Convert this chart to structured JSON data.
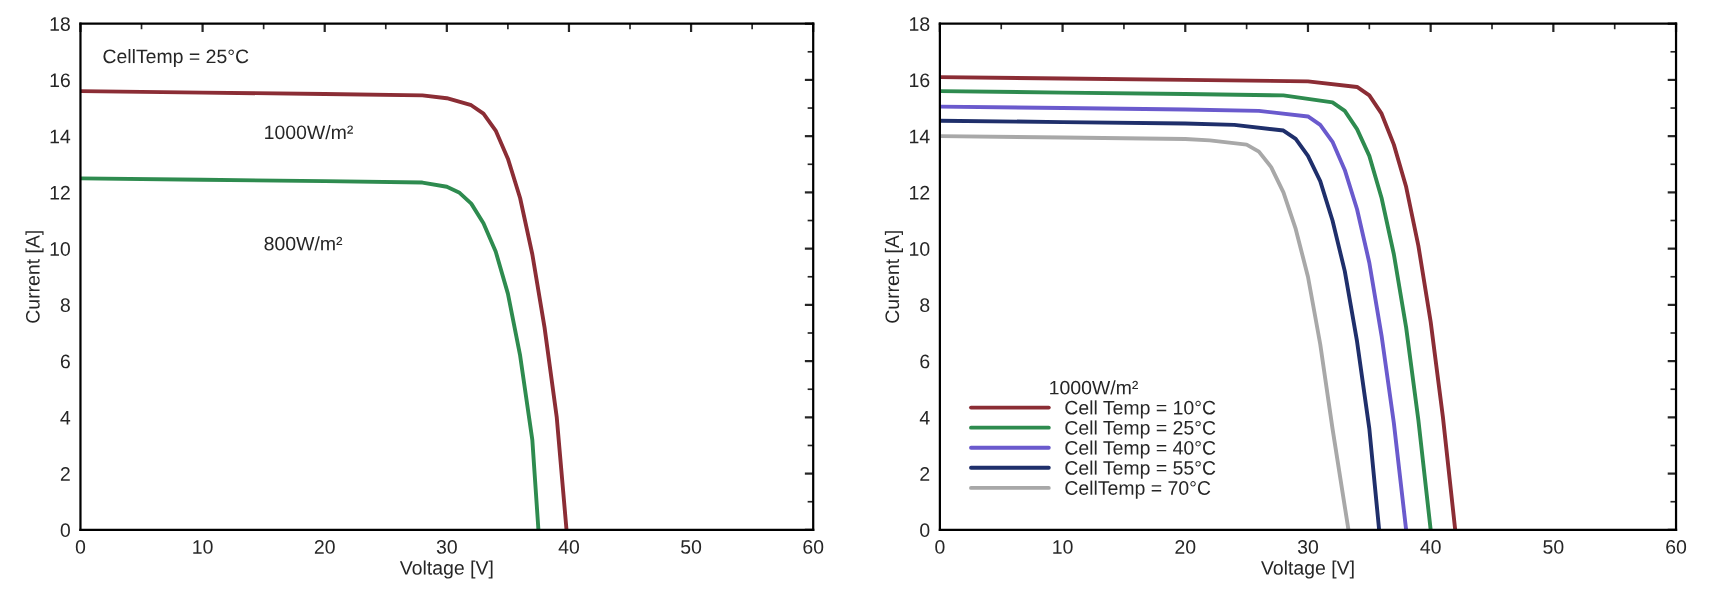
{
  "chart_data": [
    {
      "type": "line",
      "xlabel": "Voltage [V]",
      "ylabel": "Current [A]",
      "xlim": [
        0,
        60
      ],
      "xticks": [
        0,
        10,
        20,
        30,
        40,
        50,
        60
      ],
      "ylim": [
        0,
        18
      ],
      "yticks": [
        0,
        2,
        4,
        6,
        8,
        10,
        12,
        14,
        16,
        18
      ],
      "grid": false,
      "legend": false,
      "marker": "none",
      "line_style": "solid",
      "annotations": [
        "CellTemp = 25°C",
        "1000W/m²",
        "800W/m²"
      ],
      "series": [
        {
          "color": "#8b2d35",
          "x": [
            0,
            10,
            20,
            28,
            30,
            32,
            33,
            34,
            35,
            36,
            37,
            38,
            39,
            39.8
          ],
          "values": [
            15.6,
            15.55,
            15.5,
            15.45,
            15.35,
            15.1,
            14.8,
            14.2,
            13.2,
            11.8,
            9.8,
            7.2,
            4.0,
            0
          ]
        },
        {
          "color": "#2e8b4f",
          "x": [
            0,
            10,
            20,
            28,
            30,
            31,
            32,
            33,
            34,
            35,
            36,
            37,
            37.5
          ],
          "values": [
            12.5,
            12.45,
            12.4,
            12.35,
            12.2,
            12.0,
            11.6,
            10.9,
            9.9,
            8.4,
            6.2,
            3.2,
            0
          ]
        }
      ]
    },
    {
      "type": "line",
      "xlabel": "Voltage [V]",
      "ylabel": "Current [A]",
      "xlim": [
        0,
        60
      ],
      "xticks": [
        0,
        10,
        20,
        30,
        40,
        50,
        60
      ],
      "ylim": [
        0,
        18
      ],
      "yticks": [
        0,
        2,
        4,
        6,
        8,
        10,
        12,
        14,
        16,
        18
      ],
      "grid": false,
      "legend": "bottom left",
      "legend_title": "1000W/m²",
      "marker": "none",
      "line_style": "solid",
      "series": [
        {
          "name": "Cell Temp = 10°C",
          "color": "#8b2d35",
          "x": [
            0,
            10,
            20,
            30,
            34,
            35,
            36,
            37,
            38,
            39,
            40,
            41,
            42
          ],
          "values": [
            16.1,
            16.05,
            16.0,
            15.95,
            15.75,
            15.45,
            14.8,
            13.7,
            12.2,
            10.1,
            7.4,
            4.0,
            0
          ]
        },
        {
          "name": "Cell Temp = 25°C",
          "color": "#2e8b4f",
          "x": [
            0,
            10,
            20,
            28,
            32,
            33,
            34,
            35,
            36,
            37,
            38,
            39,
            40
          ],
          "values": [
            15.6,
            15.55,
            15.5,
            15.45,
            15.2,
            14.9,
            14.25,
            13.3,
            11.8,
            9.8,
            7.2,
            3.9,
            0
          ]
        },
        {
          "name": "Cell Temp = 40°C",
          "color": "#6a5acd",
          "x": [
            0,
            10,
            20,
            26,
            30,
            31,
            32,
            33,
            34,
            35,
            36,
            37,
            38
          ],
          "values": [
            15.05,
            15.0,
            14.95,
            14.9,
            14.7,
            14.4,
            13.8,
            12.8,
            11.4,
            9.5,
            6.9,
            3.8,
            0
          ]
        },
        {
          "name": "Cell Temp = 55°C",
          "color": "#1f2f6b",
          "x": [
            0,
            10,
            20,
            24,
            28,
            29,
            30,
            31,
            32,
            33,
            34,
            35,
            35.8
          ],
          "values": [
            14.55,
            14.5,
            14.45,
            14.4,
            14.2,
            13.9,
            13.3,
            12.4,
            11.0,
            9.2,
            6.7,
            3.6,
            0
          ]
        },
        {
          "name": "CellTemp = 70°C",
          "color": "#a8a8a8",
          "x": [
            0,
            10,
            20,
            22,
            25,
            26,
            27,
            28,
            29,
            30,
            31,
            32,
            33.3
          ],
          "values": [
            14.0,
            13.95,
            13.9,
            13.85,
            13.7,
            13.45,
            12.9,
            12.0,
            10.7,
            9.0,
            6.6,
            3.6,
            0
          ]
        }
      ]
    }
  ]
}
